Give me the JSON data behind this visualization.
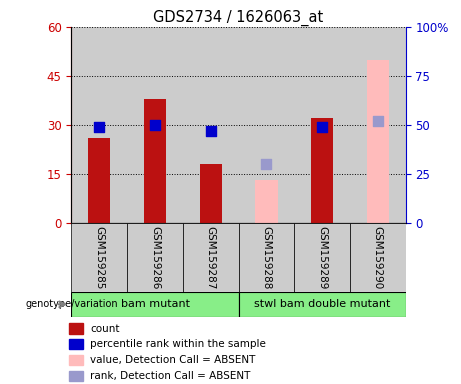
{
  "title": "GDS2734 / 1626063_at",
  "samples": [
    "GSM159285",
    "GSM159286",
    "GSM159287",
    "GSM159288",
    "GSM159289",
    "GSM159290"
  ],
  "count_values": [
    26,
    38,
    18,
    null,
    32,
    null
  ],
  "percentile_values": [
    49,
    50,
    47,
    null,
    49,
    null
  ],
  "absent_count_values": [
    null,
    null,
    null,
    13,
    null,
    50
  ],
  "absent_rank_values": [
    null,
    null,
    null,
    30,
    null,
    52
  ],
  "left_ylim": [
    0,
    60
  ],
  "right_ylim": [
    0,
    100
  ],
  "left_yticks": [
    0,
    15,
    30,
    45,
    60
  ],
  "right_yticks": [
    0,
    25,
    50,
    75,
    100
  ],
  "right_yticklabels": [
    "0",
    "25",
    "50",
    "75",
    "100%"
  ],
  "group1_label": "bam mutant",
  "group2_label": "stwl bam double mutant",
  "group_color": "#88ee88",
  "cell_bg_color": "#cccccc",
  "bar_color_present": "#bb1111",
  "bar_color_absent": "#ffbbbb",
  "dot_color_present": "#0000cc",
  "dot_color_absent": "#9999cc",
  "legend_items": [
    {
      "label": "count",
      "color": "#bb1111"
    },
    {
      "label": "percentile rank within the sample",
      "color": "#0000cc"
    },
    {
      "label": "value, Detection Call = ABSENT",
      "color": "#ffbbbb"
    },
    {
      "label": "rank, Detection Call = ABSENT",
      "color": "#9999cc"
    }
  ],
  "background_color": "#ffffff",
  "left_axis_color": "#cc0000",
  "right_axis_color": "#0000cc",
  "bar_width": 0.4,
  "dot_size": 50
}
